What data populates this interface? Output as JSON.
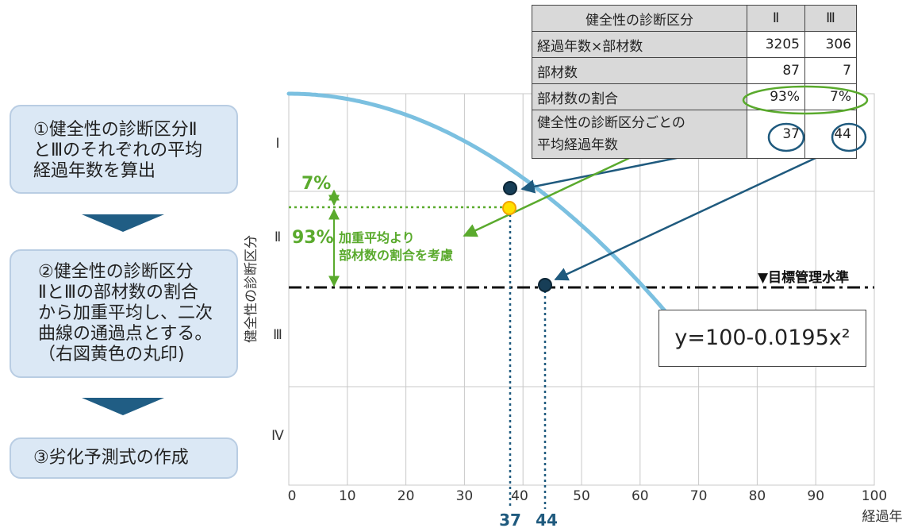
{
  "steps": [
    {
      "text": "①健全性の診断区分Ⅱ\nとⅢのそれぞれの平均\n経過年数を算出"
    },
    {
      "text": "②健全性の診断区分\nⅡとⅢの部材数の割合\nから加重平均し、二次\n曲線の通過点とする。\n（右図黄色の丸印)"
    },
    {
      "text": "③劣化予測式の作成"
    }
  ],
  "table": {
    "header": {
      "label": "健全性の診断区分",
      "col2": "Ⅱ",
      "col3": "Ⅲ"
    },
    "rows": [
      {
        "label": "経過年数×部材数",
        "col2": "3205",
        "col3": "306"
      },
      {
        "label": "部材数",
        "col2": "87",
        "col3": "7"
      },
      {
        "label": "部材数の割合",
        "col2": "93%",
        "col3": "7%"
      },
      {
        "label_line1": "健全性の診断区分ごとの",
        "label_line2": "平均経過年数",
        "col2": "37",
        "col3": "44"
      }
    ]
  },
  "chart": {
    "ylabel": "健全性の診断区分",
    "xlabel": "経過年",
    "x_ticks": [
      "0",
      "10",
      "20",
      "30",
      "40",
      "50",
      "60",
      "70",
      "80",
      "90",
      "100"
    ],
    "y_bands": [
      "Ⅰ",
      "Ⅱ",
      "Ⅲ",
      "Ⅳ"
    ],
    "equation": "y=100-0.0195x²",
    "target_label": "▼目標管理水準",
    "weighted_label_line1": "加重平均より",
    "weighted_label_line2": "部材数の割合を考慮",
    "pct_small": "7%",
    "pct_large": "93%",
    "marker_left": "37",
    "marker_right": "44",
    "colors": {
      "curve": "#7bc0e0",
      "green": "#5aaa2d",
      "navy": "#1f5a7e",
      "yellow": "#ffe000",
      "grid": "#c8c8c8"
    }
  },
  "chart_data": {
    "type": "line",
    "equation": "y=100-0.0195x²",
    "x_range": [
      0,
      100
    ],
    "x": [
      0,
      10,
      20,
      30,
      40,
      50,
      60,
      70
    ],
    "y": [
      100,
      98.05,
      92.2,
      82.45,
      68.8,
      51.25,
      29.8,
      4.45
    ],
    "xlabel": "経過年",
    "ylabel": "健全性の診断区分",
    "points": [
      {
        "x": 37,
        "label": "Ⅱ 平均経過年数"
      },
      {
        "x": 38,
        "label": "加重平均"
      },
      {
        "x": 44,
        "label": "Ⅲ 平均経過年数"
      }
    ]
  }
}
